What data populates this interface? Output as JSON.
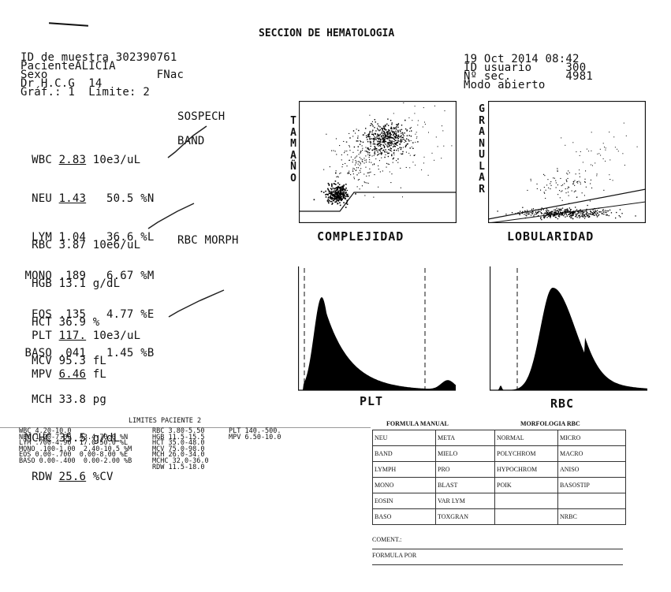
{
  "report": {
    "title": "SECCION DE HEMATOLOGIA",
    "sample_id_line": "ID de muestra 302390761",
    "patient_line": "PacienteALICIA",
    "sex_line": "Sexo                FNac",
    "doctor_line": "Dr H.C.G  14",
    "graph_line": "Gráf.: 1  Límite: 2",
    "datetime_line": "19 Oct 2014 08:42",
    "user_line": "ID usuario     300",
    "seq_line": "Nº sec.        4981",
    "mode_line": "Modo abierto"
  },
  "notes": {
    "suspect": "SOSPECH",
    "band": "BAND",
    "rbc_morph": "RBC MORPH"
  },
  "wbc_block": [
    {
      "name": "WBC",
      "value": "2.83",
      "unit": "10e3/uL"
    },
    {
      "name": "NEU",
      "value": "1.43",
      "pct": "50.5",
      "unit": "%N"
    },
    {
      "name": "LYM",
      "value": "1.04",
      "pct": "36.6",
      "unit": "%L"
    },
    {
      "name": "MONO",
      "value": ".189",
      "pct": "6.67",
      "unit": "%M"
    },
    {
      "name": "EOS",
      "value": ".135",
      "pct": "4.77",
      "unit": "%E"
    },
    {
      "name": "BASO",
      "value": ".041",
      "pct": "1.45",
      "unit": "%B"
    }
  ],
  "rbc_block": [
    {
      "name": "RBC",
      "value": "3.87",
      "unit": "10e6/uL"
    },
    {
      "name": "HGB",
      "value": "13.1",
      "unit": "g/dL"
    },
    {
      "name": "HCT",
      "value": "36.9",
      "unit": "%"
    },
    {
      "name": "MCV",
      "value": "95.3",
      "unit": "fL"
    },
    {
      "name": "MCH",
      "value": "33.8",
      "unit": "pg"
    },
    {
      "name": "MCHC",
      "value": "35.5",
      "unit": "g/dL"
    },
    {
      "name": "RDW",
      "value": "25.6",
      "unit": "%CV"
    }
  ],
  "plt_block": [
    {
      "name": "PLT",
      "value": "117.",
      "unit": "10e3/uL"
    },
    {
      "name": "MPV",
      "value": "6.46",
      "unit": "fL"
    }
  ],
  "plots": {
    "scatter1_y": [
      "T",
      "A",
      "M",
      "A",
      "Ñ",
      "O"
    ],
    "scatter1_x": "COMPLEJIDAD",
    "scatter2_y": [
      "G",
      "R",
      "A",
      "N",
      "U",
      "L",
      "A",
      "R"
    ],
    "scatter2_x": "LOBULARIDAD",
    "hist1_label": "PLT",
    "hist2_label": "RBC"
  },
  "limits": {
    "title": "LIMITES PACIENTE 2",
    "col1": "WBC 4.20-10.0\nNEU 1.20-7.00  43.4-70.0 %N\nLYM .700-4.90  17.0-50.0 %L\nMONO .100-1.00  2.40-10.5 %M\nEOS 0.00-.700  0.00-8.00 %E\nBASO 0.00-.400  0.00-2.00 %B",
    "col2": "RBC 3.80-5.50\nHGB 11.5-15.5\nHCT 35.0-48.0\nMCV 75.0-98.0\nMCH 26.0-34.0\nMCHC 32.0-36.0\nRDW 11.5-18.0",
    "col3": "PLT 140.-500.\nMPV 6.50-10.0"
  },
  "form": {
    "header_left": "FORMULA MANUAL",
    "header_right": "MORFOLOGIA RBC",
    "rows": [
      [
        "NEU",
        "META",
        "NORMAL",
        "MICRO"
      ],
      [
        "BAND",
        "MIELO",
        "POLYCHROM",
        "MACRO"
      ],
      [
        "LYMPH",
        "PRO",
        "HYPOCHROM",
        "ANISO"
      ],
      [
        "MONO",
        "BLAST",
        "POIK",
        "BASOSTIP"
      ],
      [
        "EOSIN",
        "VAR LYM",
        "",
        ""
      ],
      [
        "BASO",
        "TOXGRAN",
        "",
        "NRBC"
      ]
    ],
    "comment_label": "COMENT.:",
    "formula_by_label": "FORMULA POR"
  }
}
